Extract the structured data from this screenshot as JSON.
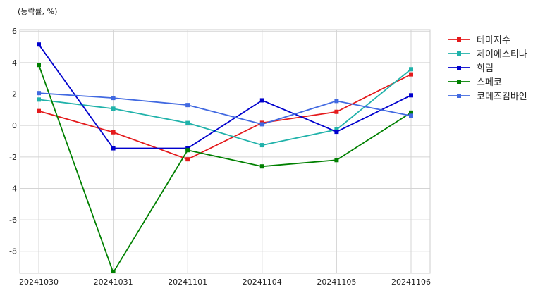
{
  "chart_data": {
    "type": "line",
    "title": "",
    "unit_label": "(등락률, %)",
    "xlabel": "",
    "ylabel": "",
    "categories": [
      "20241030",
      "20241031",
      "20241101",
      "20241104",
      "20241105",
      "20241106"
    ],
    "ylim": [
      -9.4,
      6.1
    ],
    "yticks": [
      6,
      4,
      2,
      0,
      -2,
      -4,
      -6,
      -8
    ],
    "grid": true,
    "legend_position": "outside-right",
    "series": [
      {
        "name": "테마지수",
        "color": "#e41a1c",
        "values": [
          0.92,
          -0.43,
          -2.15,
          0.17,
          0.87,
          3.25
        ]
      },
      {
        "name": "제이에스티나",
        "color": "#20b2aa",
        "values": [
          1.65,
          1.07,
          0.16,
          -1.25,
          -0.26,
          3.58
        ]
      },
      {
        "name": "희림",
        "color": "#0000cd",
        "values": [
          5.15,
          -1.45,
          -1.45,
          1.6,
          -0.4,
          1.92
        ]
      },
      {
        "name": "스페코",
        "color": "#008000",
        "values": [
          3.85,
          -9.35,
          -1.57,
          -2.6,
          -2.2,
          0.82
        ]
      },
      {
        "name": "코데즈컴바인",
        "color": "#4169e1",
        "values": [
          2.06,
          1.75,
          1.3,
          0.08,
          1.56,
          0.62
        ]
      }
    ]
  }
}
